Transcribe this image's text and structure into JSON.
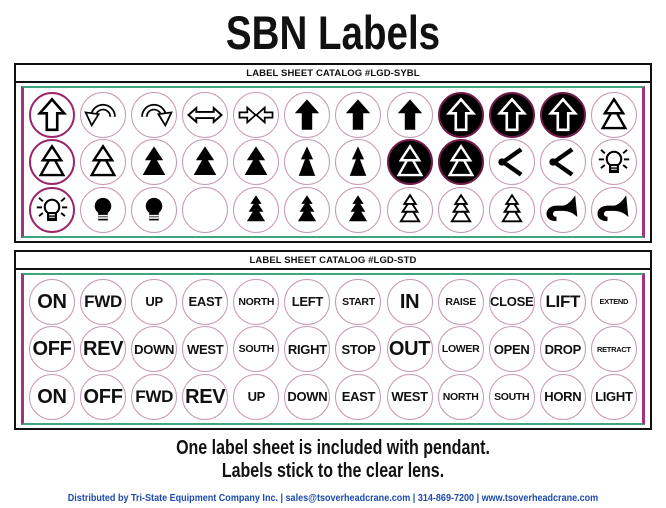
{
  "title": "SBN Labels",
  "colors": {
    "circle_ring_pink": "#c79ab5",
    "circle_ring_dark": "#9c2768",
    "inverted_ring": "#701b49",
    "frame_green": "#3fa67e",
    "frame_magenta": "#a23380",
    "footer_blue": "#1c4aae"
  },
  "sheets": [
    {
      "header": "LABEL SHEET CATALOG #LGD-SYBL",
      "type": "symbols",
      "rows": [
        {
          "cells": [
            {
              "icon": "arrow-up-outline",
              "ring": "dark"
            },
            {
              "icon": "arrow-curve-left"
            },
            {
              "icon": "arrow-curve-right"
            },
            {
              "icon": "arrow-double-horizontal"
            },
            {
              "icon": "arrows-converge"
            },
            {
              "icon": "arrow-up-solid"
            },
            {
              "icon": "arrow-up-solid"
            },
            {
              "icon": "arrow-up-solid"
            },
            {
              "icon": "arrow-up-inverse",
              "bg": "black"
            },
            {
              "icon": "arrow-up-inverse",
              "bg": "black"
            },
            {
              "icon": "arrow-up-inverse",
              "bg": "black"
            },
            {
              "icon": "tree-2-outline"
            }
          ]
        },
        {
          "cells": [
            {
              "icon": "tree-2-outline",
              "ring": "dark"
            },
            {
              "icon": "tree-2-outline"
            },
            {
              "icon": "tree-2-solid"
            },
            {
              "icon": "tree-2-solid"
            },
            {
              "icon": "tree-2-solid"
            },
            {
              "icon": "tree-2-solid-narrow"
            },
            {
              "icon": "tree-2-solid-narrow"
            },
            {
              "icon": "tree-2-inverse",
              "bg": "black"
            },
            {
              "icon": "tree-2-inverse",
              "bg": "black"
            },
            {
              "icon": "beam-spread"
            },
            {
              "icon": "beam-spread"
            },
            {
              "icon": "bulb-rays-outline"
            }
          ]
        },
        {
          "cells": [
            {
              "icon": "bulb-rays-outline",
              "ring": "dark"
            },
            {
              "icon": "bulb-solid"
            },
            {
              "icon": "bulb-solid"
            },
            {
              "icon": "blank"
            },
            {
              "icon": "tree-3-solid"
            },
            {
              "icon": "tree-3-solid"
            },
            {
              "icon": "tree-3-solid"
            },
            {
              "icon": "tree-3-outline"
            },
            {
              "icon": "tree-3-outline"
            },
            {
              "icon": "tree-3-outline"
            },
            {
              "icon": "horn-solid"
            },
            {
              "icon": "horn-solid"
            }
          ]
        }
      ]
    },
    {
      "header": "LABEL SHEET CATALOG #LGD-STD",
      "type": "text",
      "rows": [
        {
          "cells": [
            {
              "label": "ON",
              "size": "xl"
            },
            {
              "label": "FWD",
              "size": "l"
            },
            {
              "label": "UP",
              "size": "m"
            },
            {
              "label": "EAST",
              "size": "m"
            },
            {
              "label": "NORTH",
              "size": "s"
            },
            {
              "label": "LEFT",
              "size": "m"
            },
            {
              "label": "START",
              "size": "s"
            },
            {
              "label": "IN",
              "size": "xl"
            },
            {
              "label": "RAISE",
              "size": "s"
            },
            {
              "label": "CLOSE",
              "size": "m"
            },
            {
              "label": "LIFT",
              "size": "l"
            },
            {
              "label": "EXTEND",
              "size": "xs"
            }
          ]
        },
        {
          "cells": [
            {
              "label": "OFF",
              "size": "xl"
            },
            {
              "label": "REV",
              "size": "xl"
            },
            {
              "label": "DOWN",
              "size": "m"
            },
            {
              "label": "WEST",
              "size": "m"
            },
            {
              "label": "SOUTH",
              "size": "s"
            },
            {
              "label": "RIGHT",
              "size": "m"
            },
            {
              "label": "STOP",
              "size": "m"
            },
            {
              "label": "OUT",
              "size": "xl"
            },
            {
              "label": "LOWER",
              "size": "s"
            },
            {
              "label": "OPEN",
              "size": "m"
            },
            {
              "label": "DROP",
              "size": "m"
            },
            {
              "label": "RETRACT",
              "size": "xs"
            }
          ]
        },
        {
          "cells": [
            {
              "label": "ON",
              "size": "xl"
            },
            {
              "label": "OFF",
              "size": "xl"
            },
            {
              "label": "FWD",
              "size": "l"
            },
            {
              "label": "REV",
              "size": "xl"
            },
            {
              "label": "UP",
              "size": "m"
            },
            {
              "label": "DOWN",
              "size": "m"
            },
            {
              "label": "EAST",
              "size": "m"
            },
            {
              "label": "WEST",
              "size": "m"
            },
            {
              "label": "NORTH",
              "size": "s"
            },
            {
              "label": "SOUTH",
              "size": "s"
            },
            {
              "label": "HORN",
              "size": "m"
            },
            {
              "label": "LIGHT",
              "size": "m"
            }
          ]
        }
      ]
    }
  ],
  "notes": [
    "One label sheet is included with pendant.",
    "Labels stick to the clear lens."
  ],
  "footer": "Distributed by Tri-State Equipment Company Inc.  |  sales@tsoverheadcrane.com  |  314-869-7200  |  www.tsoverheadcrane.com"
}
